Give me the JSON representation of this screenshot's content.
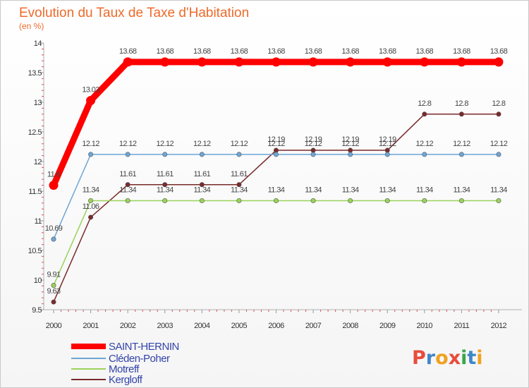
{
  "chart_data": {
    "type": "line",
    "title": "Evolution du Taux de Taxe d'Habitation",
    "subtitle": "(en %)",
    "xlabel": "",
    "ylabel": "",
    "categories": [
      "2000",
      "2001",
      "2002",
      "2003",
      "2004",
      "2005",
      "2006",
      "2007",
      "2008",
      "2009",
      "2010",
      "2011",
      "2012"
    ],
    "ylim": [
      9.5,
      14
    ],
    "yticks": [
      "9.5",
      "10",
      "10.5",
      "11",
      "11.5",
      "12",
      "12.5",
      "13",
      "13.5",
      "14"
    ],
    "series": [
      {
        "name": "SAINT-HERNIN",
        "color": "#ff0000",
        "values": [
          11.6,
          13.03,
          13.68,
          13.68,
          13.68,
          13.68,
          13.68,
          13.68,
          13.68,
          13.68,
          13.68,
          13.68,
          13.68
        ],
        "labels": [
          "11.6",
          "13.03",
          "13.68",
          "13.68",
          "13.68",
          "13.68",
          "13.68",
          "13.68",
          "13.68",
          "13.68",
          "13.68",
          "13.68",
          "13.68"
        ]
      },
      {
        "name": "Cléden-Poher",
        "color": "#6ea6d6",
        "values": [
          10.69,
          12.12,
          12.12,
          12.12,
          12.12,
          12.12,
          12.12,
          12.12,
          12.12,
          12.12,
          12.12,
          12.12,
          12.12
        ],
        "labels": [
          "10.69",
          "12.12",
          "12.12",
          "12.12",
          "12.12",
          "12.12",
          "12.12",
          "12.12",
          "12.12",
          "12.12",
          "12.12",
          "12.12",
          "12.12"
        ]
      },
      {
        "name": "Motreff",
        "color": "#9ad25a",
        "values": [
          9.91,
          11.34,
          11.34,
          11.34,
          11.34,
          11.34,
          11.34,
          11.34,
          11.34,
          11.34,
          11.34,
          11.34,
          11.34
        ],
        "labels": [
          "9.91",
          "11.34",
          "11.34",
          "11.34",
          "11.34",
          "11.34",
          "11.34",
          "11.34",
          "11.34",
          "11.34",
          "11.34",
          "11.34",
          "11.34"
        ]
      },
      {
        "name": "Kergloff",
        "color": "#7a2a2a",
        "values": [
          9.63,
          11.06,
          11.61,
          11.61,
          11.61,
          11.61,
          12.19,
          12.19,
          12.19,
          12.19,
          12.8,
          12.8,
          12.8
        ],
        "labels": [
          "9.63",
          "11.06",
          "11.61",
          "11.61",
          "11.61",
          "11.61",
          "12.19",
          "12.19",
          "12.19",
          "12.19",
          "12.8",
          "12.8",
          "12.8"
        ]
      }
    ],
    "legend_position": "bottom-left",
    "grid": false
  },
  "branding": {
    "logo_text": "Proxiti",
    "logo_letters": [
      {
        "ch": "P",
        "color": "#e94b3c"
      },
      {
        "ch": "r",
        "color": "#3f87c9"
      },
      {
        "ch": "o",
        "color": "#f0a21f"
      },
      {
        "ch": "x",
        "color": "#e94b3c"
      },
      {
        "ch": "i",
        "color": "#3aa64a"
      },
      {
        "ch": "t",
        "color": "#3f87c9"
      },
      {
        "ch": "i",
        "color": "#f0a21f"
      }
    ],
    "legend_text_color": "#3344aa"
  }
}
